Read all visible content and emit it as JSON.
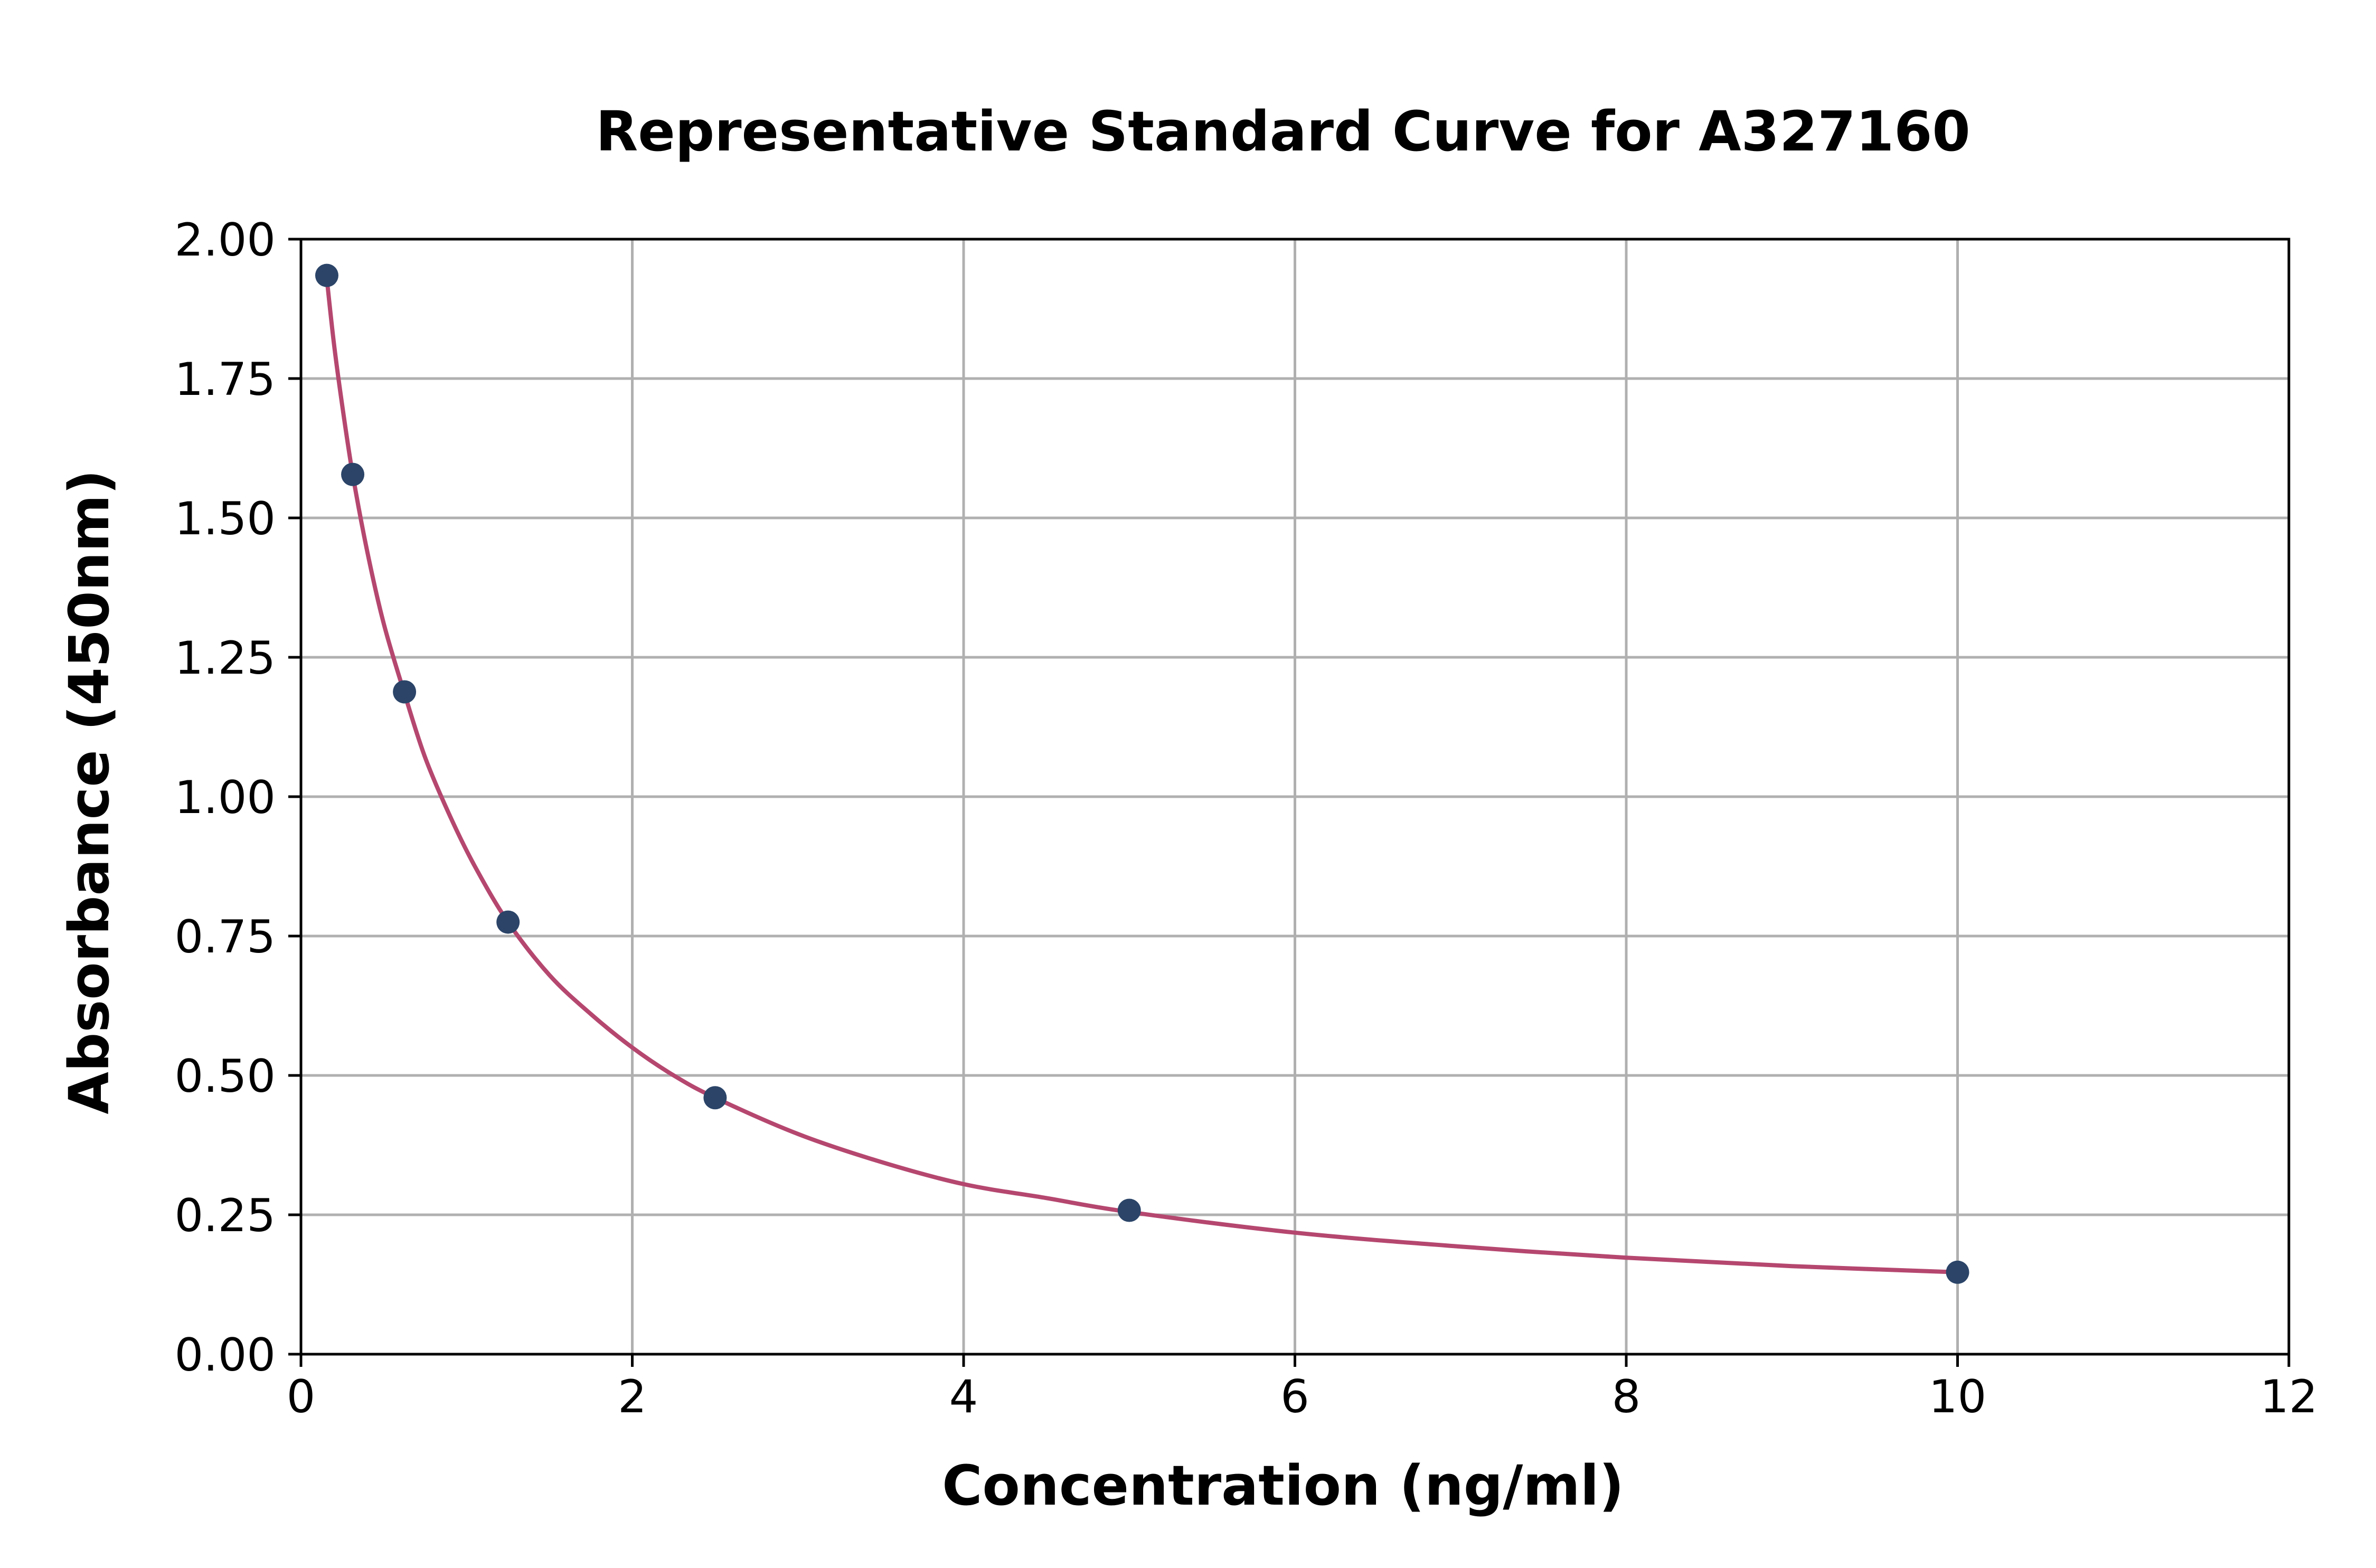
{
  "chart_data": {
    "type": "scatter",
    "title": "Representative Standard Curve for A327160",
    "xlabel": "Concentration (ng/ml)",
    "ylabel": "Absorbance (450nm)",
    "xlim": [
      0,
      12
    ],
    "ylim": [
      0,
      2
    ],
    "x_ticks": [
      "0",
      "2",
      "4",
      "6",
      "8",
      "10",
      "12"
    ],
    "y_ticks": [
      "0.00",
      "0.25",
      "0.50",
      "0.75",
      "1.00",
      "1.25",
      "1.50",
      "1.75",
      "2.00"
    ],
    "grid": true,
    "points": {
      "x": [
        0.156,
        0.3125,
        0.625,
        1.25,
        2.5,
        5,
        10
      ],
      "y": [
        1.935,
        1.578,
        1.188,
        0.775,
        0.46,
        0.258,
        0.147
      ],
      "color": "#2b4468"
    },
    "fit_curve": {
      "color": "#b5476f",
      "x": [
        0.156,
        0.2,
        0.25,
        0.3125,
        0.4,
        0.5,
        0.625,
        0.75,
        0.9,
        1.05,
        1.25,
        1.5,
        1.75,
        2.0,
        2.25,
        2.5,
        3.0,
        3.5,
        4.0,
        4.5,
        5.0,
        6.0,
        7.0,
        8.0,
        9.0,
        10.0
      ],
      "y": [
        1.93,
        1.81,
        1.7,
        1.578,
        1.44,
        1.31,
        1.185,
        1.07,
        0.965,
        0.875,
        0.775,
        0.68,
        0.61,
        0.55,
        0.5,
        0.46,
        0.395,
        0.345,
        0.305,
        0.28,
        0.255,
        0.218,
        0.193,
        0.173,
        0.158,
        0.147
      ]
    }
  }
}
